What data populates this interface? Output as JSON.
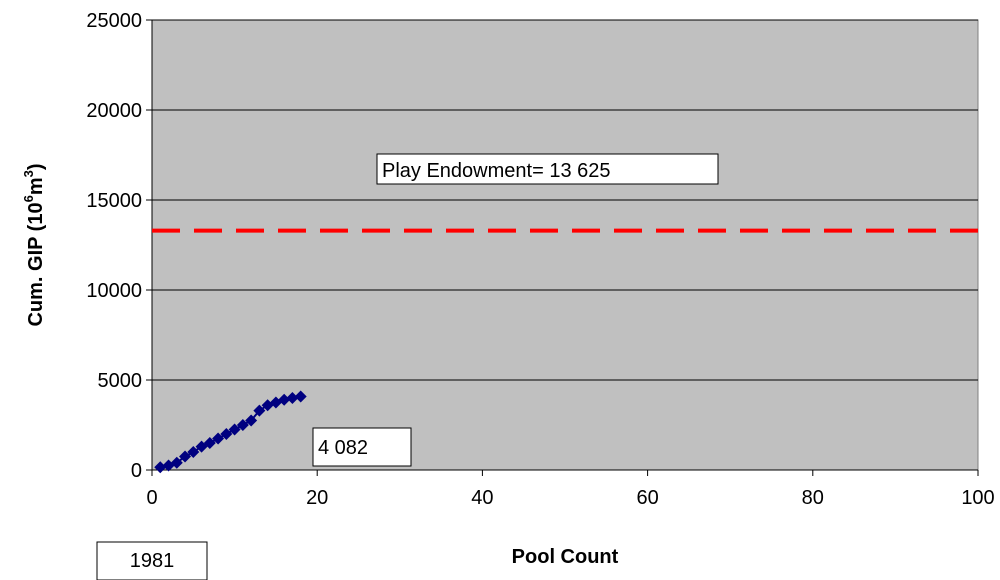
{
  "chart_data": {
    "type": "scatter",
    "xlabel": "Pool Count",
    "ylabel_main": "Cum. GIP (10",
    "ylabel_sup1": "6",
    "ylabel_mid": "m",
    "ylabel_sup2": "3",
    "ylabel_end": ")",
    "xlim": [
      0,
      100
    ],
    "ylim": [
      0,
      25000
    ],
    "x_ticks": [
      "0",
      "20",
      "40",
      "60",
      "80",
      "100"
    ],
    "y_ticks": [
      "0",
      "5000",
      "10000",
      "15000",
      "20000",
      "25000"
    ],
    "grid": "horizontal",
    "plot_background": "#c0c0c0",
    "series": [
      {
        "color": "#000080",
        "marker": "diamond",
        "points": [
          [
            1,
            150
          ],
          [
            2,
            250
          ],
          [
            3,
            400
          ],
          [
            4,
            750
          ],
          [
            5,
            1000
          ],
          [
            6,
            1300
          ],
          [
            7,
            1500
          ],
          [
            8,
            1750
          ],
          [
            9,
            2000
          ],
          [
            10,
            2250
          ],
          [
            11,
            2500
          ],
          [
            12,
            2750
          ],
          [
            13,
            3300
          ],
          [
            14,
            3600
          ],
          [
            15,
            3750
          ],
          [
            16,
            3900
          ],
          [
            17,
            4000
          ],
          [
            18,
            4082
          ]
        ]
      }
    ],
    "reference_line": {
      "y": 13300,
      "color": "#ff0000",
      "style": "dashed"
    },
    "annotations": {
      "endowment": "Play Endowment= 13 625",
      "last_value": "4 082",
      "year": "1981"
    }
  }
}
